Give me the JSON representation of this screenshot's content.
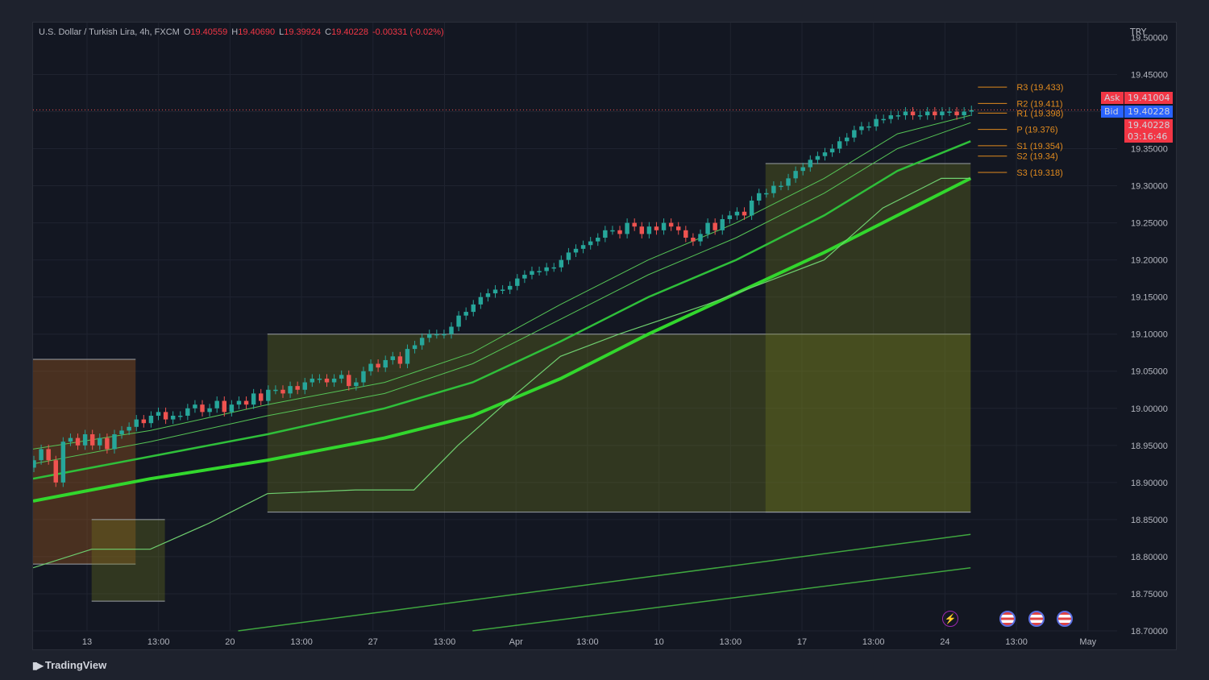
{
  "header": {
    "symbol": "U.S. Dollar / Turkish Lira, 4h, FXCM",
    "open_label": "O",
    "open": "19.40559",
    "high_label": "H",
    "high": "19.40690",
    "low_label": "L",
    "low": "19.39924",
    "close_label": "C",
    "close": "19.40228",
    "change": "-0.00331 (-0.02%)"
  },
  "price_scale": {
    "currency": "TRY",
    "ask_label": "Ask",
    "ask": "19.41004",
    "bid_label": "Bid",
    "bid": "19.40228",
    "last_price": "19.40228",
    "countdown": "03:16:46"
  },
  "colors": {
    "background": "#131722",
    "up": "#26a69a",
    "down": "#ef5350",
    "ema_strong": "#32d72d",
    "ema_mid": "#2fbf3a",
    "ema_thin": "#56c456",
    "pivot": "#e08a1e",
    "ask": "#f23645",
    "bid": "#2962ff"
  },
  "events": [
    "lightning-icon",
    "us-flag-icon",
    "us-flag-icon",
    "us-flag-icon"
  ],
  "branding": "TradingView",
  "chart_data": {
    "type": "candlestick",
    "title": "U.S. Dollar / Turkish Lira, 4h, FXCM",
    "ylabel": "TRY",
    "ylim": [
      18.7,
      19.52
    ],
    "y_ticks": [
      "19.50000",
      "19.45000",
      "19.35000",
      "19.30000",
      "19.25000",
      "19.20000",
      "19.15000",
      "19.10000",
      "19.05000",
      "19.00000",
      "18.95000",
      "18.90000",
      "18.85000",
      "18.80000",
      "18.75000",
      "18.70000"
    ],
    "x_ticks": [
      "13",
      "13:00",
      "20",
      "13:00",
      "27",
      "13:00",
      "Apr",
      "13:00",
      "10",
      "13:00",
      "17",
      "13:00",
      "24",
      "13:00",
      "May"
    ],
    "x_range_bars": [
      0,
      148
    ],
    "last_bar": 128,
    "candles_close": [
      18.93,
      18.945,
      18.93,
      18.9,
      18.955,
      18.96,
      18.95,
      18.965,
      18.95,
      18.96,
      18.945,
      18.965,
      18.97,
      18.975,
      18.985,
      18.98,
      18.99,
      18.995,
      18.985,
      18.99,
      18.99,
      19.0,
      19.005,
      18.995,
      19.0,
      19.01,
      18.995,
      19.005,
      19.01,
      19.005,
      19.02,
      19.01,
      19.025,
      19.025,
      19.02,
      19.03,
      19.025,
      19.035,
      19.04,
      19.04,
      19.035,
      19.04,
      19.045,
      19.03,
      19.035,
      19.05,
      19.06,
      19.055,
      19.065,
      19.07,
      19.06,
      19.08,
      19.085,
      19.095,
      19.1,
      19.1,
      19.1,
      19.11,
      19.125,
      19.13,
      19.14,
      19.15,
      19.155,
      19.16,
      19.16,
      19.165,
      19.175,
      19.18,
      19.185,
      19.185,
      19.19,
      19.19,
      19.2,
      19.21,
      19.215,
      19.22,
      19.225,
      19.23,
      19.24,
      19.24,
      19.235,
      19.25,
      19.245,
      19.235,
      19.245,
      19.24,
      19.25,
      19.245,
      19.24,
      19.23,
      19.225,
      19.235,
      19.25,
      19.24,
      19.255,
      19.26,
      19.265,
      19.26,
      19.28,
      19.29,
      19.29,
      19.3,
      19.3,
      19.31,
      19.32,
      19.325,
      19.335,
      19.34,
      19.345,
      19.35,
      19.36,
      19.365,
      19.375,
      19.38,
      19.38,
      19.39,
      19.39,
      19.395,
      19.395,
      19.4,
      19.395,
      19.395,
      19.4,
      19.395,
      19.4,
      19.4,
      19.395,
      19.4,
      19.402
    ],
    "series": [
      {
        "name": "",
        "style": "ema_strong",
        "values": [
          [
            0,
            18.875
          ],
          [
            16,
            18.905
          ],
          [
            32,
            18.93
          ],
          [
            48,
            18.96
          ],
          [
            60,
            18.99
          ],
          [
            72,
            19.04
          ],
          [
            84,
            19.1
          ],
          [
            96,
            19.155
          ],
          [
            108,
            19.21
          ],
          [
            118,
            19.26
          ],
          [
            128,
            19.31
          ]
        ]
      },
      {
        "name": "",
        "style": "ema_mid",
        "values": [
          [
            0,
            18.905
          ],
          [
            16,
            18.935
          ],
          [
            32,
            18.965
          ],
          [
            48,
            19.0
          ],
          [
            60,
            19.035
          ],
          [
            72,
            19.09
          ],
          [
            84,
            19.15
          ],
          [
            96,
            19.2
          ],
          [
            108,
            19.26
          ],
          [
            118,
            19.32
          ],
          [
            128,
            19.36
          ]
        ]
      },
      {
        "name": "",
        "style": "ema_thin",
        "values": [
          [
            0,
            18.925
          ],
          [
            16,
            18.955
          ],
          [
            32,
            18.99
          ],
          [
            48,
            19.02
          ],
          [
            60,
            19.06
          ],
          [
            72,
            19.12
          ],
          [
            84,
            19.18
          ],
          [
            96,
            19.23
          ],
          [
            108,
            19.29
          ],
          [
            118,
            19.35
          ],
          [
            128,
            19.385
          ]
        ]
      },
      {
        "name": "",
        "style": "ema_thin",
        "values": [
          [
            0,
            18.945
          ],
          [
            16,
            18.97
          ],
          [
            32,
            19.005
          ],
          [
            48,
            19.035
          ],
          [
            60,
            19.075
          ],
          [
            72,
            19.14
          ],
          [
            84,
            19.2
          ],
          [
            96,
            19.25
          ],
          [
            108,
            19.31
          ],
          [
            118,
            19.37
          ],
          [
            128,
            19.395
          ]
        ]
      },
      {
        "name": "",
        "style": "trail",
        "values": [
          [
            0,
            18.785
          ],
          [
            8,
            18.81
          ],
          [
            16,
            18.81
          ],
          [
            24,
            18.845
          ],
          [
            32,
            18.885
          ],
          [
            44,
            18.89
          ],
          [
            52,
            18.89
          ],
          [
            58,
            18.95
          ],
          [
            66,
            19.02
          ],
          [
            72,
            19.07
          ],
          [
            80,
            19.1
          ],
          [
            92,
            19.14
          ],
          [
            100,
            19.17
          ],
          [
            108,
            19.2
          ],
          [
            116,
            19.27
          ],
          [
            124,
            19.31
          ],
          [
            128,
            19.31
          ]
        ]
      },
      {
        "name": "",
        "style": "channel",
        "values": [
          [
            28,
            18.7
          ],
          [
            128,
            18.83
          ]
        ]
      },
      {
        "name": "",
        "style": "channel",
        "values": [
          [
            60,
            18.7
          ],
          [
            128,
            18.785
          ]
        ]
      }
    ],
    "pivots": [
      {
        "label": "R3 (19.433)",
        "value": 19.433
      },
      {
        "label": "R2 (19.411)",
        "value": 19.411
      },
      {
        "label": "R1 (19.398)",
        "value": 19.398
      },
      {
        "label": "P (19.376)",
        "value": 19.376
      },
      {
        "label": "S1 (19.354)",
        "value": 19.354
      },
      {
        "label": "S2 (19.34)",
        "value": 19.34
      },
      {
        "label": "S3 (19.318)",
        "value": 19.318
      }
    ],
    "boxes": [
      {
        "x0": 0,
        "x1": 14,
        "top": 19.066,
        "bottom": 18.79,
        "color": "brown"
      },
      {
        "x0": 8,
        "x1": 18,
        "top": 18.85,
        "bottom": 18.74,
        "color": "olive"
      },
      {
        "x0": 32,
        "x1": 128,
        "top": 19.1,
        "bottom": 18.86,
        "color": "olive"
      },
      {
        "x0": 100,
        "x1": 128,
        "top": 19.33,
        "bottom": 18.86,
        "color": "olive"
      }
    ],
    "grid": true
  }
}
